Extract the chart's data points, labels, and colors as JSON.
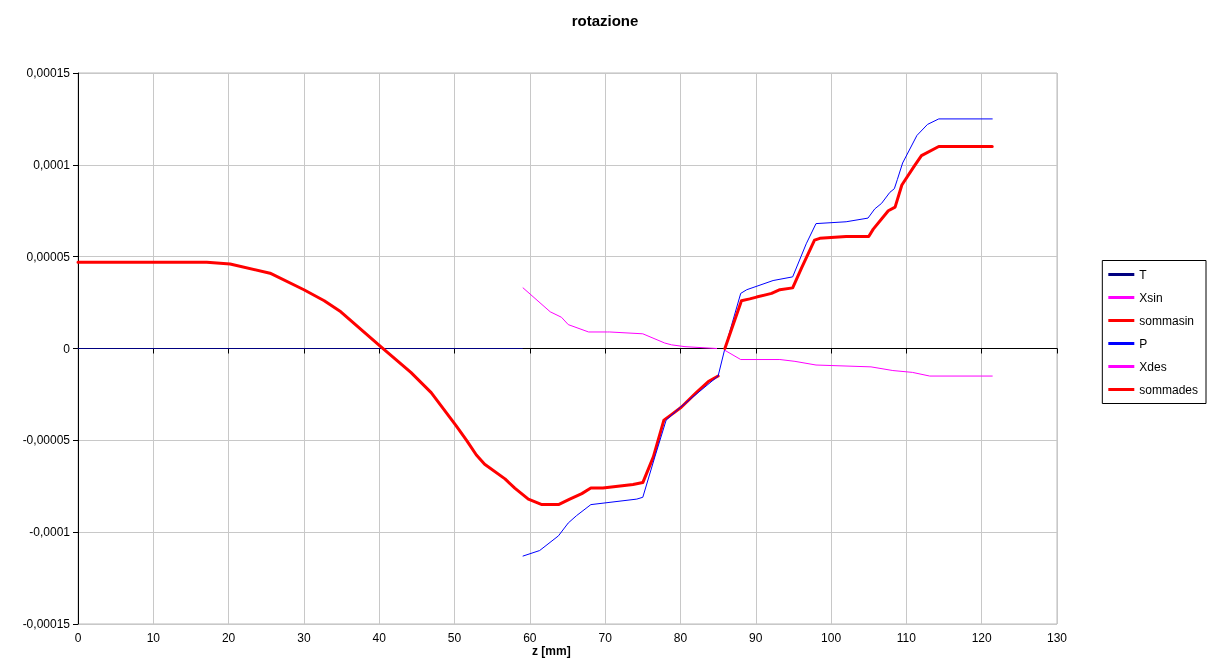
{
  "chart_data": {
    "type": "line",
    "title": "rotazione",
    "xlabel": "z [mm]",
    "xlim": [
      0,
      130
    ],
    "xticks": [
      0,
      10,
      20,
      30,
      40,
      50,
      60,
      70,
      80,
      90,
      100,
      110,
      120,
      130
    ],
    "ylim": [
      -0.00015,
      0.00015
    ],
    "yticks": [
      {
        "value": -0.00015,
        "label": "-0,00015"
      },
      {
        "value": -0.0001,
        "label": "-0,0001"
      },
      {
        "value": -5e-05,
        "label": "-0,00005"
      },
      {
        "value": 0,
        "label": "0"
      },
      {
        "value": 5e-05,
        "label": "0,00005"
      },
      {
        "value": 0.0001,
        "label": "0,0001"
      },
      {
        "value": 0.00015,
        "label": "0,00015"
      }
    ],
    "grid": true,
    "legend": "right",
    "marker": "none",
    "line_style": "solid",
    "series": [
      {
        "name": "T",
        "color": "#000080",
        "x": [
          0,
          59
        ],
        "values": [
          0,
          0
        ]
      },
      {
        "name": "Xsin",
        "color": "#ff00ff",
        "x": [
          59.1,
          62.7,
          64.2,
          65.1,
          67.8,
          70.3,
          70.6,
          75,
          77.9,
          78.8,
          80.6,
          84.8
        ],
        "values": [
          3.3e-05,
          2e-05,
          1.7e-05,
          1.3e-05,
          9e-06,
          9e-06,
          9e-06,
          8e-06,
          3e-06,
          2e-06,
          1e-06,
          0
        ]
      },
      {
        "name": "sommasin",
        "color": "#ff0000",
        "x": [
          0,
          17.1,
          20.2,
          25.5,
          30,
          32.7,
          34.9,
          40.2,
          44.2,
          46.9,
          50.2,
          51.6,
          52.9,
          54,
          56.7,
          58,
          59.8,
          61.6,
          63.8,
          65.3,
          66.9,
          68.1,
          69.7,
          73.7,
          75,
          76.4,
          77.8,
          78.8,
          80.1,
          82.1,
          83.7,
          85
        ],
        "values": [
          4.7e-05,
          4.7e-05,
          4.6e-05,
          4.1e-05,
          3.2e-05,
          2.6e-05,
          2e-05,
          1e-06,
          -1.3e-05,
          -2.4e-05,
          -4.2e-05,
          -5e-05,
          -5.8e-05,
          -6.3e-05,
          -7.1e-05,
          -7.6e-05,
          -8.2e-05,
          -8.5e-05,
          -8.5e-05,
          -8.2e-05,
          -7.9e-05,
          -7.6e-05,
          -7.6e-05,
          -7.4e-05,
          -7.3e-05,
          -5.9e-05,
          -3.9e-05,
          -3.6e-05,
          -3.2e-05,
          -2.4e-05,
          -1.8e-05,
          -1.5e-05
        ]
      },
      {
        "name": "P",
        "color": "#0000ff",
        "x": [
          59.1,
          61.3,
          63.8,
          65.1,
          66.2,
          68.1,
          74.2,
          75,
          76.6,
          78.1,
          80,
          85,
          85.9,
          88,
          88.8,
          92.3,
          94.9,
          96.7,
          98,
          102,
          104.9,
          105.8,
          106.7,
          107.8,
          108.4,
          108.8,
          109.5,
          111.4,
          112.8,
          114.3,
          121.4
        ],
        "values": [
          -0.000113,
          -0.00011,
          -0.000102,
          -9.5e-05,
          -9.1e-05,
          -8.5e-05,
          -8.2e-05,
          -8.1e-05,
          -5.9e-05,
          -3.9e-05,
          -3.2e-05,
          -1.5e-05,
          0,
          3e-05,
          3.2e-05,
          3.7e-05,
          3.9e-05,
          5.7e-05,
          6.8e-05,
          6.9e-05,
          7.1e-05,
          7.6e-05,
          7.9e-05,
          8.5e-05,
          8.7e-05,
          9.2e-05,
          0.000101,
          0.000116,
          0.000122,
          0.000125,
          0.000125
        ]
      },
      {
        "name": "Xdes",
        "color": "#ff00ff",
        "x": [
          85.9,
          88,
          93.2,
          95.2,
          98,
          105.3,
          108.2,
          110.8,
          113.1,
          121.4
        ],
        "values": [
          -1e-06,
          -6e-06,
          -6e-06,
          -7e-06,
          -9e-06,
          -1e-05,
          -1.2e-05,
          -1.3e-05,
          -1.5e-05,
          -1.5e-05
        ]
      },
      {
        "name": "sommades",
        "color": "#ff0000",
        "x": [
          85.9,
          88.1,
          89.2,
          90.1,
          92.1,
          93.2,
          94.9,
          96.1,
          97.8,
          98.5,
          102,
          102.9,
          105,
          105.6,
          107.6,
          108.5,
          109.4,
          111,
          112,
          114.3,
          121.4
        ],
        "values": [
          0,
          2.6e-05,
          2.7e-05,
          2.8e-05,
          3e-05,
          3.2e-05,
          3.3e-05,
          4.4e-05,
          5.9e-05,
          6e-05,
          6.1e-05,
          6.1e-05,
          6.1e-05,
          6.5e-05,
          7.5e-05,
          7.7e-05,
          8.9e-05,
          9.9e-05,
          0.000105,
          0.00011,
          0.00011
        ]
      }
    ]
  }
}
